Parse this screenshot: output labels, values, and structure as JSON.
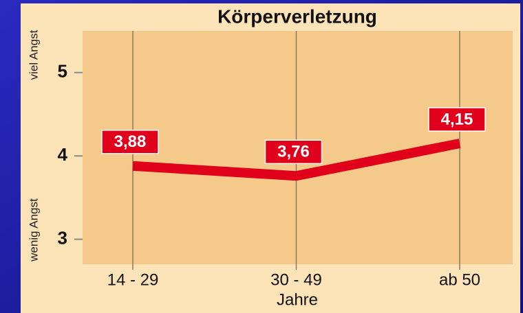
{
  "chart_data": {
    "type": "line",
    "title": "Körperverletzung",
    "categories": [
      "14 - 29",
      "30 - 49",
      "ab 50"
    ],
    "series": [
      {
        "name": "Körperverletzung",
        "color": "#e0001b",
        "values": [
          3.88,
          3.76,
          4.15
        ],
        "value_labels": [
          "3,88",
          "3,76",
          "4,15"
        ]
      }
    ],
    "ylim": [
      2.7,
      5.5
    ],
    "yticks": [
      3,
      4,
      5
    ],
    "xlabel": "Jahre",
    "ylabel_top": "viel Angst",
    "ylabel_bottom": "wenig Angst"
  }
}
